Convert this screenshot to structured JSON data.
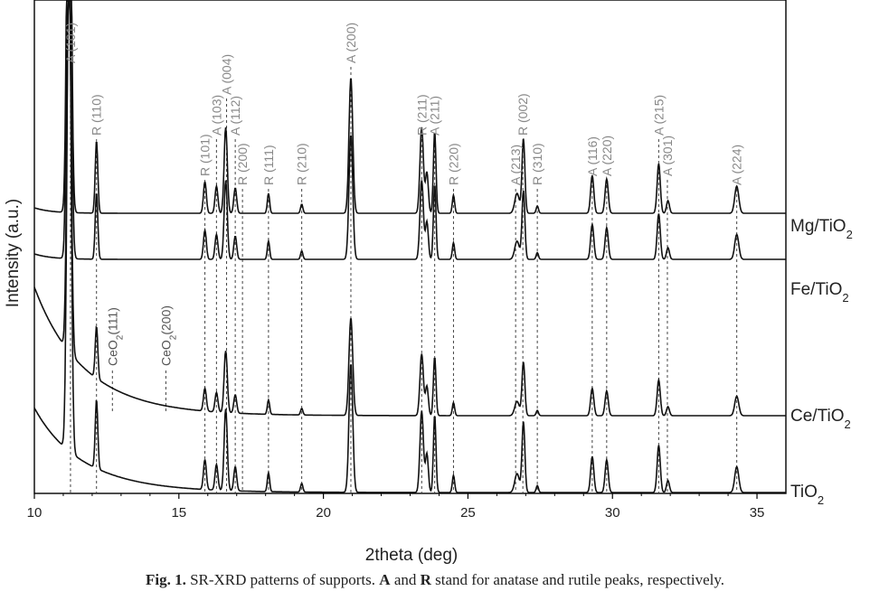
{
  "chart_data": {
    "type": "line",
    "xlabel": "2theta (deg)",
    "ylabel": "Intensity (a.u.)",
    "xlim": [
      10,
      36
    ],
    "x_ticks": [
      10,
      15,
      20,
      25,
      30,
      35
    ],
    "x_tick_labels": [
      "10",
      "15",
      "20",
      "25",
      "30",
      "35"
    ],
    "grid": false,
    "legend": "series labels at right end of each curve",
    "series": [
      {
        "name": "Mg/TiO",
        "subscript": "2",
        "color": "#111111"
      },
      {
        "name": "Fe/TiO",
        "subscript": "2",
        "color": "#111111"
      },
      {
        "name": "Ce/TiO",
        "subscript": "2",
        "color": "#111111"
      },
      {
        "name": "TiO",
        "subscript": "2",
        "color": "#111111"
      }
    ],
    "peak_annotations": [
      {
        "label": "A (101)",
        "x": 11.25
      },
      {
        "label": "R (110)",
        "x": 12.15
      },
      {
        "label": "R (101)",
        "x": 15.9
      },
      {
        "label": "A (103)",
        "x": 16.3
      },
      {
        "label": "A (004)",
        "x": 16.65
      },
      {
        "label": "A (112)",
        "x": 16.95
      },
      {
        "label": "R (200)",
        "x": 17.2
      },
      {
        "label": "R (111)",
        "x": 18.1
      },
      {
        "label": "R (210)",
        "x": 19.25
      },
      {
        "label": "A (200)",
        "x": 20.95
      },
      {
        "label": "R (211)",
        "x": 23.4
      },
      {
        "label": "A (211)",
        "x": 23.85
      },
      {
        "label": "R (220)",
        "x": 24.5
      },
      {
        "label": "A (213)",
        "x": 26.65
      },
      {
        "label": "R (002)",
        "x": 26.9
      },
      {
        "label": "R (310)",
        "x": 27.4
      },
      {
        "label": "A (116)",
        "x": 29.3
      },
      {
        "label": "A (220)",
        "x": 29.8
      },
      {
        "label": "A (215)",
        "x": 31.6
      },
      {
        "label": "A (301)",
        "x": 31.9
      },
      {
        "label": "A (224)",
        "x": 34.3
      }
    ],
    "ceo2_annotations": [
      {
        "label": "CeO",
        "sub": "2",
        "suffix": "(111)",
        "x": 12.7
      },
      {
        "label": "CeO",
        "sub": "2",
        "suffix": "(200)",
        "x": 14.55
      }
    ],
    "caption": {
      "prefix": "Fig. 1.",
      "text_1": " SR-XRD patterns of supports. ",
      "a": "A",
      "text_2": " and ",
      "r": "R",
      "text_3": " stand for anatase and rutile peaks, respectively."
    }
  }
}
